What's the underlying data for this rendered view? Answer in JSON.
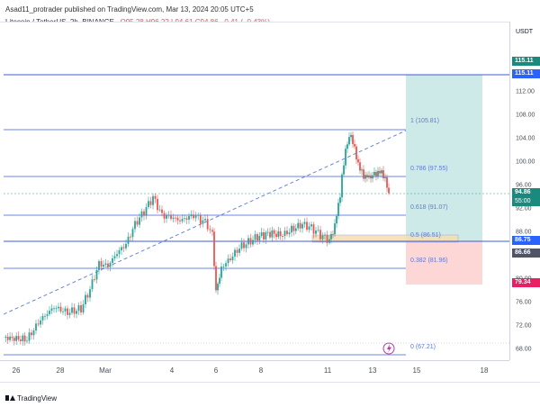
{
  "header": {
    "published": "Asad11_protrader published on TradingView.com, Mar 13, 2024 20:05 UTC+5",
    "symbol": "Litecoin / TetherUS, 2h, BINANCE",
    "open": "O95.28",
    "high": "H96.22",
    "low": "L94.61",
    "close": "C94.86",
    "change": "−0.41 (−0.43%)"
  },
  "colors": {
    "up": "#26a69a",
    "down": "#ef5350",
    "level_line": "#3b5bdb",
    "trend_dashed": "#5b7bd5",
    "target_zone": "#b2dfdb",
    "stop_zone": "#fcc8c8",
    "order_zone": "#f5deb3",
    "pink_label": "#e91e63",
    "green_label": "#1b8a7e",
    "blue_label": "#2962ff",
    "dark_label": "#505464"
  },
  "price_axis": {
    "currency": "USDT",
    "ticks": [
      "112.00",
      "108.00",
      "104.00",
      "100.00",
      "96.00",
      "92.00",
      "88.00",
      "84.00",
      "80.00",
      "76.00",
      "72.00",
      "68.00"
    ],
    "labels": [
      {
        "text": "115.11",
        "style": "green"
      },
      {
        "text": "115.11",
        "style": "blue"
      },
      {
        "text": "94.86",
        "style": "green"
      },
      {
        "text": "55:00",
        "style": "green"
      },
      {
        "text": "86.75",
        "style": "blue"
      },
      {
        "text": "86.66",
        "style": "dark"
      },
      {
        "text": "79.34",
        "style": "pink"
      }
    ]
  },
  "time_axis": {
    "ticks": [
      "26",
      "28",
      "Mar",
      "4",
      "6",
      "8",
      "11",
      "13",
      "15",
      "18"
    ]
  },
  "fib_levels": [
    {
      "label": "1 (105.81)",
      "price": 105.81
    },
    {
      "label": "0.786 (97.55)",
      "price": 97.55
    },
    {
      "label": "0.618 (91.07)",
      "price": 91.07
    },
    {
      "label": "0.5 (86.51)",
      "price": 86.51
    },
    {
      "label": "0.382 (81.96)",
      "price": 81.96
    },
    {
      "label": "0 (67.21)",
      "price": 67.21
    }
  ],
  "footer": {
    "brand": "TradingView"
  }
}
